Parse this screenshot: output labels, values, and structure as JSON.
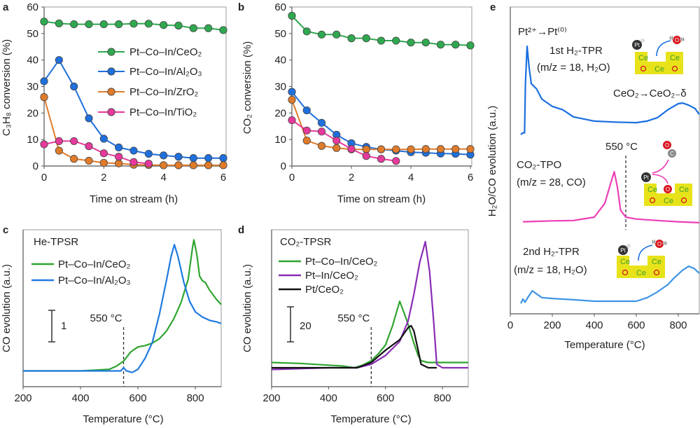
{
  "panel_letters": [
    "a",
    "b",
    "c",
    "d",
    "e"
  ],
  "chart_data": [
    {
      "panel": "a",
      "type": "line",
      "markers": true,
      "xlabel": "Time on stream (h)",
      "ylabel": "C₃H₈ conversion (%)",
      "xlim": [
        0,
        6
      ],
      "ylim": [
        0,
        60
      ],
      "xticks": [
        0,
        2,
        4,
        6
      ],
      "yticks": [
        0,
        10,
        20,
        30,
        40,
        50,
        60
      ],
      "legend": "right",
      "series": [
        {
          "name": "Pt–Co–In/CeO₂",
          "color": "#2fa84f",
          "x": [
            0,
            0.5,
            1,
            1.5,
            2,
            2.5,
            3,
            3.5,
            4,
            4.5,
            5,
            5.5,
            6
          ],
          "y": [
            54.5,
            53.8,
            53.5,
            53.5,
            53.5,
            53.5,
            53.7,
            53.7,
            53.2,
            53,
            52,
            52,
            51.3
          ]
        },
        {
          "name": "Pt–Co–In/Al₂O₃",
          "color": "#1f6fdc",
          "x": [
            0,
            0.5,
            1,
            1.5,
            2,
            2.5,
            3,
            3.5,
            4,
            4.5,
            5,
            5.5,
            6
          ],
          "y": [
            32,
            40,
            30,
            18,
            10.3,
            7,
            5.8,
            4.6,
            4,
            3.5,
            3,
            3,
            3
          ]
        },
        {
          "name": "Pt–Co–In/ZrO₂",
          "color": "#e07b2a",
          "x": [
            0,
            0.5,
            1,
            1.5,
            2,
            2.5,
            3,
            3.5,
            4,
            4.5,
            5,
            5.5,
            6
          ],
          "y": [
            26,
            5.8,
            2.7,
            2,
            1.2,
            1,
            0.5,
            0.4,
            0.3,
            0.3,
            0.3,
            0.3,
            0.3
          ]
        },
        {
          "name": "Pt–Co–In/TiO₂",
          "color": "#e6399b",
          "x": [
            0,
            0.5,
            1,
            1.5,
            2,
            2.5,
            3,
            3.5
          ],
          "y": [
            8.2,
            9.4,
            9.4,
            7.5,
            4.8,
            3.5,
            1.5,
            0.9
          ]
        }
      ]
    },
    {
      "panel": "b",
      "type": "line",
      "markers": true,
      "xlabel": "Time on stream (h)",
      "ylabel": "CO₂ conversion (%)",
      "xlim": [
        0,
        6
      ],
      "ylim": [
        0,
        60
      ],
      "xticks": [
        0,
        2,
        4,
        6
      ],
      "yticks": [
        0,
        10,
        20,
        30,
        40,
        50,
        60
      ],
      "series": [
        {
          "color": "#2fa84f",
          "x": [
            0,
            0.5,
            1,
            1.5,
            2,
            2.5,
            3,
            3.5,
            4,
            4.5,
            5,
            5.5,
            6
          ],
          "y": [
            56.7,
            50.8,
            49.6,
            49.6,
            48.2,
            48.2,
            47.3,
            47.3,
            46.6,
            46.6,
            45.8,
            45.8,
            45.5
          ]
        },
        {
          "color": "#1f6fdc",
          "x": [
            0,
            0.5,
            1,
            1.5,
            2,
            2.5,
            3,
            3.5,
            4,
            4.5,
            5,
            5.5,
            6
          ],
          "y": [
            28,
            21,
            16.3,
            11.8,
            8.6,
            7.2,
            6.3,
            5.8,
            5.2,
            5,
            4.7,
            4.6,
            4.3
          ]
        },
        {
          "color": "#e07b2a",
          "x": [
            0,
            0.5,
            1,
            1.5,
            2,
            2.5,
            3,
            3.5,
            4,
            4.5,
            5,
            5.5,
            6
          ],
          "y": [
            25,
            9.6,
            7.6,
            6.8,
            6.3,
            6.3,
            6.3,
            6.3,
            6.3,
            6.4,
            6.4,
            6.4,
            6.4
          ]
        },
        {
          "color": "#e6399b",
          "x": [
            0,
            0.5,
            1,
            1.5,
            2,
            2.5,
            3,
            3.5
          ],
          "y": [
            17.3,
            13.4,
            13,
            9.6,
            6.4,
            3.8,
            2.7,
            1.9
          ]
        }
      ]
    },
    {
      "panel": "c",
      "type": "line",
      "markers": false,
      "title": "He-TPSR",
      "xlabel": "Temperature (°C)",
      "ylabel": "CO evolution (a.u.)",
      "xlim": [
        200,
        890
      ],
      "ylim": [
        -0.5,
        4.47
      ],
      "xticks": [
        200,
        400,
        600,
        800
      ],
      "scale_bar": {
        "value": 1,
        "label": "1"
      },
      "marker_line": {
        "x": 550,
        "label": "550 °C"
      },
      "legend": "top-left",
      "series": [
        {
          "name": "Pt–Co–In/CeO₂",
          "color": "#2fa52f",
          "x": [
            200,
            300,
            400,
            500,
            525,
            550,
            575,
            600,
            625,
            650,
            675,
            700,
            725,
            750,
            775,
            790,
            795,
            805,
            815,
            825,
            835,
            850,
            875,
            890
          ],
          "y": [
            0,
            0,
            0,
            0.05,
            0.15,
            0.31,
            0.6,
            0.76,
            0.8,
            0.88,
            1.02,
            1.27,
            1.65,
            2.16,
            2.9,
            3.9,
            4.15,
            3.7,
            3.0,
            2.85,
            2.8,
            2.55,
            2.25,
            2.1
          ]
        },
        {
          "name": "Pt–Co–In/Al₂O₃",
          "color": "#1f7ae0",
          "x": [
            200,
            300,
            400,
            500,
            540,
            550,
            560,
            580,
            600,
            625,
            650,
            675,
            700,
            715,
            727,
            740,
            760,
            780,
            800,
            825,
            850,
            875,
            890
          ],
          "y": [
            0,
            0,
            0,
            0,
            0,
            0.1,
            0,
            -0.05,
            0.05,
            0.4,
            0.9,
            1.8,
            2.9,
            3.6,
            4.0,
            3.6,
            2.8,
            2.2,
            1.87,
            1.7,
            1.6,
            1.55,
            1.5
          ]
        }
      ]
    },
    {
      "panel": "d",
      "type": "line",
      "markers": false,
      "title": "CO₂-TPSR",
      "xlabel": "Temperature (°C)",
      "ylabel": "CO evolution (a.u.)",
      "xlim": [
        200,
        891
      ],
      "ylim": [
        -10.8,
        78.8
      ],
      "xticks": [
        200,
        400,
        600,
        800
      ],
      "scale_bar": {
        "value": 20,
        "label": "20"
      },
      "marker_line": {
        "x": 550,
        "label": "550 °C"
      },
      "legend": "top-left",
      "series": [
        {
          "name": "Pt–Co–In/CeO₂",
          "color": "#2fa52f",
          "x": [
            200,
            300,
            400,
            450,
            490,
            520,
            550,
            575,
            600,
            625,
            650,
            675,
            700,
            715,
            725,
            750,
            800,
            891
          ],
          "y": [
            3,
            2.5,
            1.5,
            1,
            0,
            1.5,
            4,
            8,
            13,
            24,
            38,
            27,
            14,
            7,
            4,
            3,
            3,
            3
          ]
        },
        {
          "name": "Pt–In/CeO₂",
          "color": "#8a2cb5",
          "x": [
            200,
            300,
            400,
            500,
            550,
            600,
            650,
            680,
            700,
            720,
            740,
            755,
            770,
            780,
            800,
            891
          ],
          "y": [
            -1,
            -0.5,
            0,
            0,
            2,
            7,
            15,
            27,
            42,
            60,
            72,
            55,
            25,
            2,
            0,
            0
          ]
        },
        {
          "name": "Pt/CeO₂",
          "color": "#111111",
          "x": [
            200,
            300,
            400,
            500,
            550,
            600,
            650,
            680,
            690,
            700,
            715,
            725,
            750,
            780
          ],
          "y": [
            0,
            0,
            0,
            0,
            3,
            10,
            16,
            23,
            24,
            21,
            10,
            2,
            0,
            0
          ]
        }
      ]
    },
    {
      "panel": "e",
      "type": "line",
      "markers": false,
      "xlabel": "Temperature (°C)",
      "ylabel": "H₂O/CO evolution (a.u.)",
      "xlim": [
        0,
        900
      ],
      "ylim": [
        0,
        100
      ],
      "xticks": [
        0,
        200,
        400,
        600,
        800
      ],
      "marker_line": {
        "x": 550,
        "label": "550 °C"
      },
      "annotations": {
        "pt_reduction": "Pt²⁺→Pt⁽⁰⁾",
        "first_tpr": "1st H₂-TPR",
        "first_tpr_mz": "(m/z = 18, H₂O)",
        "ceria_reduction": "CeO₂→CeO₂₋δ",
        "tpo": "CO₂-TPO",
        "tpo_mz": "(m/z = 28, CO)",
        "second_tpr": "2nd H₂-TPR",
        "second_tpr_mz": "(m/z = 18, H₂O)"
      },
      "schematic_labels": {
        "ce": "Ce",
        "o": "O",
        "pt": "Pt",
        "h": "H",
        "c": "C"
      },
      "schematic_colors": {
        "support": "#e8e21a",
        "ce_text": "#3aa12e",
        "oxygen": "#d8141e",
        "pt": "#333333"
      },
      "series": [
        {
          "name": "1st H₂-TPR",
          "color": "#1a6fe0",
          "x": [
            50,
            60,
            68,
            72,
            80,
            90,
            100,
            125,
            150,
            200,
            250,
            300,
            400,
            500,
            600,
            650,
            700,
            750,
            800,
            820,
            850,
            880,
            900
          ],
          "y": [
            58.4,
            59,
            59,
            75,
            87.2,
            80,
            75,
            73.3,
            70,
            67.6,
            66.5,
            64.2,
            62.8,
            62.5,
            62.3,
            62.8,
            63.9,
            66.5,
            68.5,
            68.7,
            68,
            66.9,
            65
          ]
        },
        {
          "name": "CO₂-TPO",
          "color": "#ec3fb5",
          "x": [
            60,
            200,
            300,
            400,
            450,
            480,
            495,
            510,
            525,
            550,
            600,
            700,
            800,
            900
          ],
          "y": [
            30,
            30.3,
            30.4,
            31.5,
            36,
            43,
            46.3,
            41.3,
            33.8,
            31.5,
            30.9,
            30.4,
            30,
            29.7
          ]
        },
        {
          "name": "2nd H₂-TPR",
          "color": "#3d95e6",
          "x": [
            50,
            60,
            70,
            85,
            105,
            125,
            150,
            200,
            250,
            300,
            400,
            500,
            600,
            650,
            700,
            750,
            780,
            820,
            850,
            875,
            900
          ],
          "y": [
            3.4,
            4.8,
            3.8,
            5.5,
            7.5,
            6.5,
            5.3,
            5,
            4.8,
            4.6,
            4.1,
            4.1,
            4.1,
            5.2,
            7.1,
            9.5,
            11.7,
            14.2,
            15.5,
            14.8,
            13.2
          ]
        }
      ]
    }
  ]
}
